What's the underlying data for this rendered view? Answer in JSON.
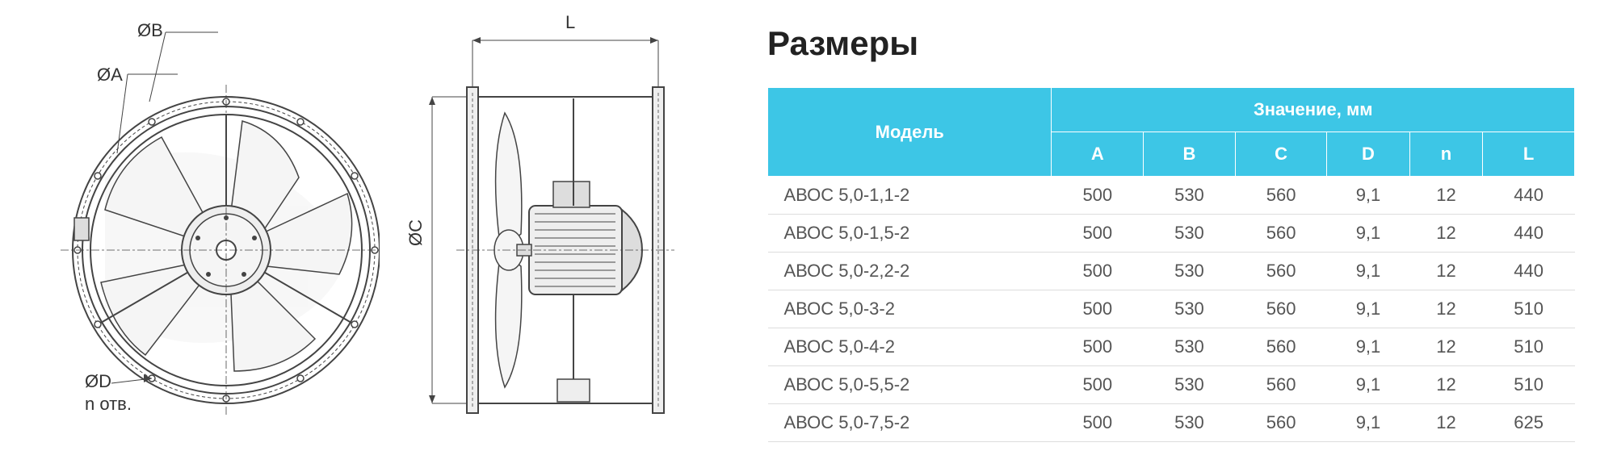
{
  "title": "Размеры",
  "diagram": {
    "labels": {
      "diameter_B": "ØB",
      "diameter_A": "ØA",
      "diameter_D": "ØD",
      "holes": "n отв.",
      "diameter_C": "ØC",
      "length": "L"
    },
    "colors": {
      "line": "#444444",
      "fill_light": "#f0f0f0",
      "fill_medium": "#cccccc",
      "fill_dark": "#888888",
      "watermark": "#e8e8e8",
      "watermark_blue": "#d0e8f0"
    }
  },
  "table": {
    "header_bg": "#3dc6e6",
    "header_color": "#ffffff",
    "row_color": "#555555",
    "border_color": "#dddddd",
    "model_header": "Модель",
    "value_group_header": "Значение, мм",
    "columns": [
      "A",
      "B",
      "C",
      "D",
      "n",
      "L"
    ],
    "rows": [
      {
        "model": "АВОС 5,0-1,1-2",
        "values": [
          "500",
          "530",
          "560",
          "9,1",
          "12",
          "440"
        ]
      },
      {
        "model": "АВОС 5,0-1,5-2",
        "values": [
          "500",
          "530",
          "560",
          "9,1",
          "12",
          "440"
        ]
      },
      {
        "model": "АВОС 5,0-2,2-2",
        "values": [
          "500",
          "530",
          "560",
          "9,1",
          "12",
          "440"
        ]
      },
      {
        "model": "АВОС 5,0-3-2",
        "values": [
          "500",
          "530",
          "560",
          "9,1",
          "12",
          "510"
        ]
      },
      {
        "model": "АВОС 5,0-4-2",
        "values": [
          "500",
          "530",
          "560",
          "9,1",
          "12",
          "510"
        ]
      },
      {
        "model": "АВОС 5,0-5,5-2",
        "values": [
          "500",
          "530",
          "560",
          "9,1",
          "12",
          "510"
        ]
      },
      {
        "model": "АВОС 5,0-7,5-2",
        "values": [
          "500",
          "530",
          "560",
          "9,1",
          "12",
          "625"
        ]
      }
    ]
  }
}
